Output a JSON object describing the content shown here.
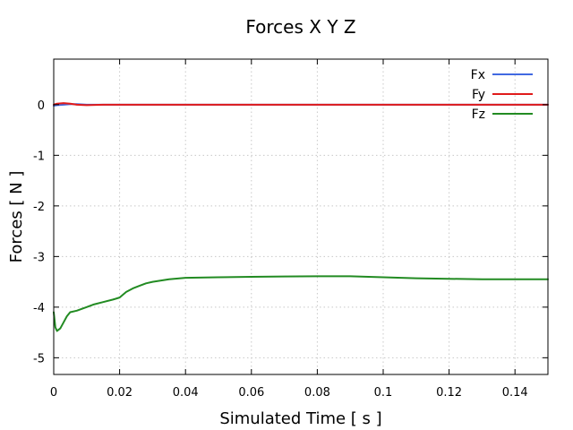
{
  "chart_data": {
    "type": "line",
    "title": "Forces X Y Z",
    "xlabel": "Simulated Time [ s ]",
    "ylabel": "Forces [ N ]",
    "xlim": [
      0,
      0.15
    ],
    "ylim": [
      -5.33,
      0.9
    ],
    "xticks": [
      0,
      0.02,
      0.04,
      0.06,
      0.08,
      0.1,
      0.12,
      0.14
    ],
    "xtick_labels": [
      "0",
      "0.02",
      "0.04",
      "0.06",
      "0.08",
      "0.1",
      "0.12",
      "0.14"
    ],
    "yticks": [
      0,
      -1,
      -2,
      -3,
      -4,
      -5
    ],
    "ytick_labels": [
      "0",
      "-1",
      "-2",
      "-3",
      "-4",
      "-5"
    ],
    "grid": true,
    "legend_position": "top-right",
    "series": [
      {
        "name": "Fx",
        "color": "#4169e1",
        "x": [
          0,
          0.001,
          0.003,
          0.005,
          0.007,
          0.01,
          0.015,
          0.02,
          0.05,
          0.1,
          0.15
        ],
        "y": [
          -0.02,
          -0.01,
          0.0,
          0.01,
          0.01,
          0.0,
          0.0,
          0.0,
          0.0,
          0.0,
          0.0
        ]
      },
      {
        "name": "Fy",
        "color": "#e01b1b",
        "x": [
          0,
          0.001,
          0.003,
          0.005,
          0.007,
          0.01,
          0.015,
          0.02,
          0.05,
          0.1,
          0.15
        ],
        "y": [
          0.0,
          0.02,
          0.03,
          0.02,
          0.0,
          -0.01,
          0.0,
          0.0,
          0.0,
          0.0,
          0.0
        ]
      },
      {
        "name": "Fz",
        "color": "#228b22",
        "x": [
          0,
          0.0005,
          0.001,
          0.002,
          0.003,
          0.004,
          0.005,
          0.007,
          0.01,
          0.012,
          0.015,
          0.018,
          0.02,
          0.022,
          0.024,
          0.026,
          0.028,
          0.03,
          0.035,
          0.04,
          0.05,
          0.06,
          0.07,
          0.08,
          0.09,
          0.1,
          0.11,
          0.12,
          0.13,
          0.14,
          0.15
        ],
        "y": [
          -4.1,
          -4.4,
          -4.47,
          -4.42,
          -4.3,
          -4.18,
          -4.1,
          -4.07,
          -4.0,
          -3.95,
          -3.9,
          -3.85,
          -3.81,
          -3.7,
          -3.63,
          -3.58,
          -3.53,
          -3.5,
          -3.45,
          -3.42,
          -3.41,
          -3.4,
          -3.395,
          -3.39,
          -3.39,
          -3.41,
          -3.43,
          -3.44,
          -3.45,
          -3.45,
          -3.45
        ]
      }
    ]
  }
}
